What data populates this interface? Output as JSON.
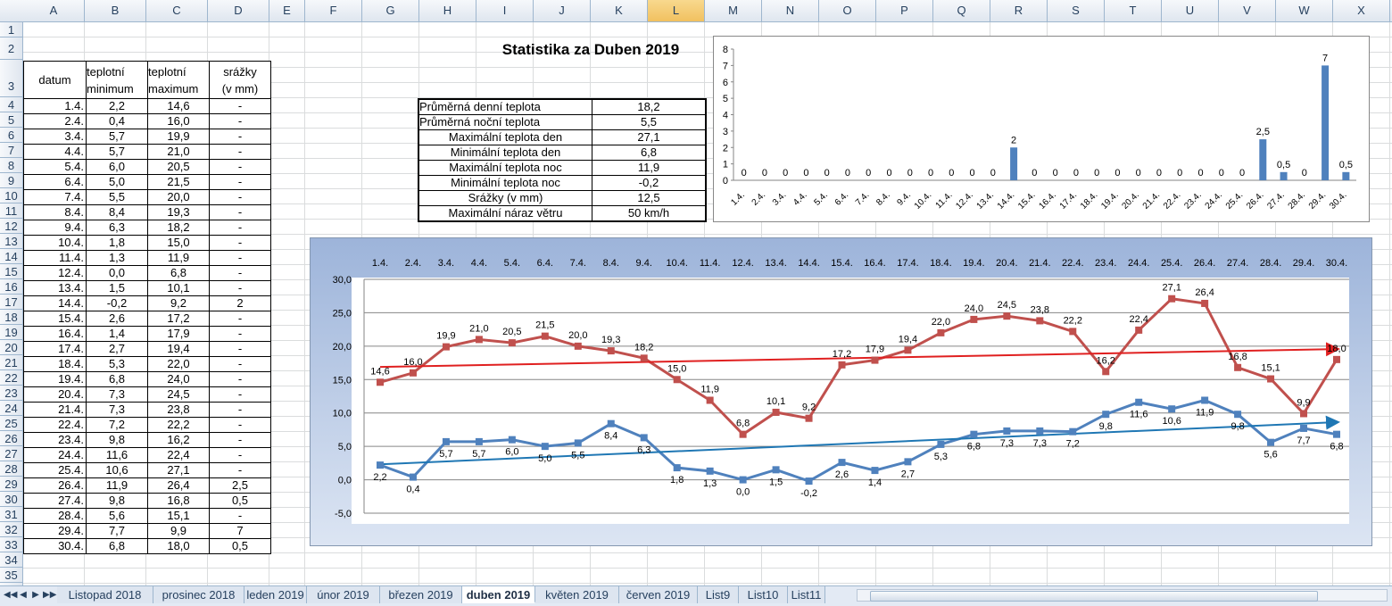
{
  "columns": [
    "A",
    "B",
    "C",
    "D",
    "E",
    "F",
    "G",
    "H",
    "I",
    "J",
    "K",
    "L",
    "M",
    "N",
    "O",
    "P",
    "Q",
    "R",
    "S",
    "T",
    "U",
    "V",
    "W",
    "X"
  ],
  "selected_column": "L",
  "rows": [
    "1",
    "2",
    "3",
    "4",
    "5",
    "6",
    "7",
    "8",
    "9",
    "10",
    "11",
    "12",
    "13",
    "14",
    "15",
    "16",
    "17",
    "18",
    "19",
    "20",
    "21",
    "22",
    "23",
    "24",
    "25",
    "26",
    "27",
    "28",
    "29",
    "30",
    "31",
    "32",
    "33",
    "34",
    "35"
  ],
  "table": {
    "headers": {
      "date": "datum",
      "min_1": "teplotní",
      "min_2": "minimum",
      "max_1": "teplotní",
      "max_2": "maximum",
      "rain_1": "srážky",
      "rain_2": "(v mm)"
    },
    "rows": [
      {
        "d": "1.4.",
        "min": "2,2",
        "max": "14,6",
        "rain": "-"
      },
      {
        "d": "2.4.",
        "min": "0,4",
        "max": "16,0",
        "rain": "-"
      },
      {
        "d": "3.4.",
        "min": "5,7",
        "max": "19,9",
        "rain": "-"
      },
      {
        "d": "4.4.",
        "min": "5,7",
        "max": "21,0",
        "rain": "-"
      },
      {
        "d": "5.4.",
        "min": "6,0",
        "max": "20,5",
        "rain": "-"
      },
      {
        "d": "6.4.",
        "min": "5,0",
        "max": "21,5",
        "rain": "-"
      },
      {
        "d": "7.4.",
        "min": "5,5",
        "max": "20,0",
        "rain": "-"
      },
      {
        "d": "8.4.",
        "min": "8,4",
        "max": "19,3",
        "rain": "-"
      },
      {
        "d": "9.4.",
        "min": "6,3",
        "max": "18,2",
        "rain": "-"
      },
      {
        "d": "10.4.",
        "min": "1,8",
        "max": "15,0",
        "rain": "-"
      },
      {
        "d": "11.4.",
        "min": "1,3",
        "max": "11,9",
        "rain": "-"
      },
      {
        "d": "12.4.",
        "min": "0,0",
        "max": "6,8",
        "rain": "-"
      },
      {
        "d": "13.4.",
        "min": "1,5",
        "max": "10,1",
        "rain": "-"
      },
      {
        "d": "14.4.",
        "min": "-0,2",
        "max": "9,2",
        "rain": "2"
      },
      {
        "d": "15.4.",
        "min": "2,6",
        "max": "17,2",
        "rain": "-"
      },
      {
        "d": "16.4.",
        "min": "1,4",
        "max": "17,9",
        "rain": "-"
      },
      {
        "d": "17.4.",
        "min": "2,7",
        "max": "19,4",
        "rain": "-"
      },
      {
        "d": "18.4.",
        "min": "5,3",
        "max": "22,0",
        "rain": "-"
      },
      {
        "d": "19.4.",
        "min": "6,8",
        "max": "24,0",
        "rain": "-"
      },
      {
        "d": "20.4.",
        "min": "7,3",
        "max": "24,5",
        "rain": "-"
      },
      {
        "d": "21.4.",
        "min": "7,3",
        "max": "23,8",
        "rain": "-"
      },
      {
        "d": "22.4.",
        "min": "7,2",
        "max": "22,2",
        "rain": "-"
      },
      {
        "d": "23.4.",
        "min": "9,8",
        "max": "16,2",
        "rain": "-"
      },
      {
        "d": "24.4.",
        "min": "11,6",
        "max": "22,4",
        "rain": "-"
      },
      {
        "d": "25.4.",
        "min": "10,6",
        "max": "27,1",
        "rain": "-"
      },
      {
        "d": "26.4.",
        "min": "11,9",
        "max": "26,4",
        "rain": "2,5"
      },
      {
        "d": "27.4.",
        "min": "9,8",
        "max": "16,8",
        "rain": "0,5"
      },
      {
        "d": "28.4.",
        "min": "5,6",
        "max": "15,1",
        "rain": "-"
      },
      {
        "d": "29.4.",
        "min": "7,7",
        "max": "9,9",
        "rain": "7"
      },
      {
        "d": "30.4.",
        "min": "6,8",
        "max": "18,0",
        "rain": "0,5"
      }
    ]
  },
  "title": "Statistika za Duben 2019",
  "stats": [
    {
      "label": "Průměrná denní teplota",
      "value": "18,2"
    },
    {
      "label": "Průměrná noční teplota",
      "value": "5,5"
    },
    {
      "label": "Maximální teplota den",
      "value": "27,1"
    },
    {
      "label": "Minimální teplota den",
      "value": "6,8"
    },
    {
      "label": "Maximální teplota noc",
      "value": "11,9"
    },
    {
      "label": "Minimální teplota noc",
      "value": "-0,2"
    },
    {
      "label": "Srážky (v mm)",
      "value": "12,5"
    },
    {
      "label": "Maximální náraz větru",
      "value": "50 km/h"
    }
  ],
  "colors": {
    "min_series": "#4f81bd",
    "max_series": "#c0504d",
    "min_trend": "#1f77b4",
    "max_trend": "#e02020",
    "bar": "#4f81bd"
  },
  "chart_data": [
    {
      "type": "bar",
      "categories": [
        "1.4.",
        "2.4.",
        "3.4.",
        "4.4.",
        "5.4.",
        "6.4.",
        "7.4.",
        "8.4.",
        "9.4.",
        "10.4.",
        "11.4.",
        "12.4.",
        "13.4.",
        "14.4.",
        "15.4.",
        "16.4.",
        "17.4.",
        "18.4.",
        "19.4.",
        "20.4.",
        "21.4.",
        "22.4.",
        "23.4.",
        "24.4.",
        "25.4.",
        "26.4.",
        "27.4.",
        "28.4.",
        "29.4.",
        "30.4."
      ],
      "values": [
        0,
        0,
        0,
        0,
        0,
        0,
        0,
        0,
        0,
        0,
        0,
        0,
        0,
        2,
        0,
        0,
        0,
        0,
        0,
        0,
        0,
        0,
        0,
        0,
        0,
        2.5,
        0.5,
        0,
        7,
        0.5
      ],
      "data_labels": [
        "0",
        "0",
        "0",
        "0",
        "0",
        "0",
        "0",
        "0",
        "0",
        "0",
        "0",
        "0",
        "0",
        "2",
        "0",
        "0",
        "0",
        "0",
        "0",
        "0",
        "0",
        "0",
        "0",
        "0",
        "0",
        "2,5",
        "0,5",
        "0",
        "7",
        "0,5"
      ],
      "ylim": [
        0,
        8
      ],
      "yticks": [
        "0",
        "1",
        "2",
        "3",
        "4",
        "5",
        "6",
        "7",
        "8"
      ]
    },
    {
      "type": "line",
      "categories": [
        "1.4.",
        "2.4.",
        "3.4.",
        "4.4.",
        "5.4.",
        "6.4.",
        "7.4.",
        "8.4.",
        "9.4.",
        "10.4.",
        "11.4.",
        "12.4.",
        "13.4.",
        "14.4.",
        "15.4.",
        "16.4.",
        "17.4.",
        "18.4.",
        "19.4.",
        "20.4.",
        "21.4.",
        "22.4.",
        "23.4.",
        "24.4.",
        "25.4.",
        "26.4.",
        "27.4.",
        "28.4.",
        "29.4.",
        "30.4."
      ],
      "series": [
        {
          "values": [
            14.6,
            16.0,
            19.9,
            21.0,
            20.5,
            21.5,
            20.0,
            19.3,
            18.2,
            15.0,
            11.9,
            6.8,
            10.1,
            9.2,
            17.2,
            17.9,
            19.4,
            22.0,
            24.0,
            24.5,
            23.8,
            22.2,
            16.2,
            22.4,
            27.1,
            26.4,
            16.8,
            15.1,
            9.9,
            18.0
          ],
          "labels": [
            "14,6",
            "16,0",
            "19,9",
            "21,0",
            "20,5",
            "21,5",
            "20,0",
            "19,3",
            "18,2",
            "15,0",
            "11,9",
            "6,8",
            "10,1",
            "9,2",
            "17,2",
            "17,9",
            "19,4",
            "22,0",
            "24,0",
            "24,5",
            "23,8",
            "22,2",
            "16,2",
            "22,4",
            "27,1",
            "26,4",
            "16,8",
            "15,1",
            "9,9",
            "18,0"
          ]
        },
        {
          "values": [
            2.2,
            0.4,
            5.7,
            5.7,
            6.0,
            5.0,
            5.5,
            8.4,
            6.3,
            1.8,
            1.3,
            0.0,
            1.5,
            -0.2,
            2.6,
            1.4,
            2.7,
            5.3,
            6.8,
            7.3,
            7.3,
            7.2,
            9.8,
            11.6,
            10.6,
            11.9,
            9.8,
            5.6,
            7.7,
            6.8
          ],
          "labels": [
            "2,2",
            "0,4",
            "5,7",
            "5,7",
            "6,0",
            "5,0",
            "5,5",
            "8,4",
            "6,3",
            "1,8",
            "1,3",
            "0,0",
            "1,5",
            "-0,2",
            "2,6",
            "1,4",
            "2,7",
            "5,3",
            "6,8",
            "7,3",
            "7,3",
            "7,2",
            "9,8",
            "11,6",
            "10,6",
            "11,9",
            "9,8",
            "5,6",
            "7,7",
            "6,8"
          ]
        }
      ],
      "trendlines": true,
      "ylim": [
        -5,
        30
      ],
      "yticks": [
        "-5,0",
        "0,0",
        "5,0",
        "10,0",
        "15,0",
        "20,0",
        "25,0",
        "30,0"
      ],
      "x_axis_position": "top",
      "grid": true
    }
  ],
  "sheets": [
    "Listopad 2018",
    "prosinec 2018",
    "leden 2019",
    "únor 2019",
    "březen 2019",
    "duben 2019",
    "květen 2019",
    "červen 2019",
    "List9",
    "List10",
    "List11"
  ],
  "active_sheet": "duben 2019",
  "nav": {
    "first": "◀◀",
    "prev": "◀",
    "next": "▶",
    "last": "▶▶"
  }
}
